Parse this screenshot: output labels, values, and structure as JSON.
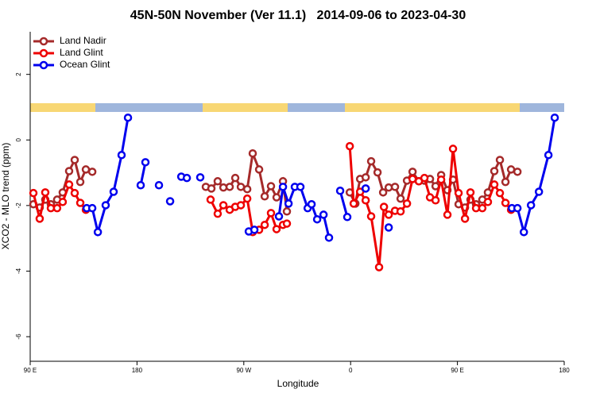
{
  "chart_data": {
    "type": "line",
    "title": "45N-50N November (Ver 11.1)   2014-09-06 to 2023-04-30",
    "xlabel": "Longitude",
    "ylabel": "XCO2 - MLO trend (ppm)",
    "xlim": [
      90,
      540
    ],
    "ylim": [
      -6.75,
      3.3
    ],
    "xticks": [
      {
        "value": 90,
        "label": "90 E"
      },
      180,
      {
        "value": 270,
        "label": "90 W"
      },
      {
        "value": 360,
        "label": "0"
      },
      {
        "value": 450,
        "label": "90 E"
      },
      180
    ],
    "yticks": [
      2,
      0,
      -2,
      -4,
      -6
    ],
    "legend": "top-left",
    "series": [
      {
        "name": "Land Nadir",
        "color": "#a52a2a",
        "x": [
          92.7,
          98,
          102.7,
          107.4,
          112.7,
          117.4,
          122.8,
          127.5,
          132.2,
          136.9,
          142.3,
          null,
          238,
          242.7,
          248,
          252.8,
          258.1,
          262.8,
          267.5,
          272.9,
          277.5,
          282.9,
          287.6,
          292.9,
          297.6,
          303,
          306.3,
          null,
          359.3,
          364,
          368,
          372.7,
          377.3,
          382.7,
          387.4,
          392.1,
          397.4,
          402.1,
          407.5,
          412.2,
          417.5,
          422.2,
          426.9,
          431.6,
          436.3,
          441.6,
          446.3,
          451,
          456.4,
          461,
          465.7,
          471,
          475.7,
          481.1,
          485.8,
          490.5,
          495.2,
          500.6
        ],
        "values": [
          -1.96,
          -2.06,
          -1.82,
          -1.96,
          -1.82,
          -1.6,
          -0.95,
          -0.61,
          -1.28,
          -0.9,
          -0.97,
          null,
          -1.43,
          -1.48,
          -1.26,
          -1.45,
          -1.43,
          -1.16,
          -1.43,
          -1.5,
          -0.41,
          -0.9,
          -1.72,
          -1.41,
          -1.75,
          -1.26,
          -2.18,
          null,
          -1.6,
          -1.94,
          -1.19,
          -1.14,
          -0.65,
          -0.99,
          -1.6,
          -1.45,
          -1.43,
          -1.79,
          -1.24,
          -0.97,
          -1.26,
          -1.24,
          -1.19,
          -1.41,
          -1.07,
          -1.53,
          -1.21,
          -1.96,
          -2.06,
          -1.82,
          -1.96,
          -1.82,
          -1.6,
          -0.95,
          -0.61,
          -1.28,
          -0.9,
          -0.97
        ]
      },
      {
        "name": "Land Glint",
        "color": "#ee0000",
        "x": [
          92.7,
          98,
          102.7,
          107.4,
          112.7,
          117.4,
          122.8,
          127.5,
          132.2,
          136.9,
          null,
          242,
          248,
          252.8,
          258.1,
          262.8,
          267.5,
          272.9,
          277.5,
          282.9,
          287.6,
          292.9,
          297.6,
          303,
          306.3,
          null,
          359.3,
          362.6,
          368,
          372.7,
          377.3,
          384,
          388.1,
          392.1,
          397.4,
          402.1,
          407.5,
          412.2,
          417.5,
          422.2,
          426.9,
          431.6,
          436.3,
          441.6,
          446.3,
          451,
          456.4,
          461,
          465.7,
          471,
          475.7,
          481.1,
          485.8,
          490.5,
          495.2
        ],
        "values": [
          -1.62,
          -2.4,
          -1.6,
          -2.08,
          -2.08,
          -1.89,
          -1.36,
          -1.62,
          -1.92,
          -2.13,
          null,
          -1.82,
          -2.25,
          -1.99,
          -2.13,
          -2.04,
          -1.99,
          -1.79,
          -2.81,
          -2.74,
          -2.59,
          -2.23,
          -2.72,
          -2.59,
          -2.55,
          null,
          -0.19,
          -1.94,
          -1.58,
          -1.84,
          -2.33,
          -3.88,
          -2.04,
          -2.28,
          -2.16,
          -2.18,
          -1.94,
          -1.19,
          -1.26,
          -1.16,
          -1.75,
          -1.84,
          -1.21,
          -2.28,
          -0.27,
          -1.62,
          -2.4,
          -1.6,
          -2.08,
          -2.08,
          -1.89,
          -1.36,
          -1.62,
          -1.92,
          -2.13
        ]
      },
      {
        "name": "Ocean Glint",
        "color": "#0000ee",
        "x": [
          137.6,
          142.3,
          147,
          153.6,
          160.3,
          167,
          172.4,
          null,
          183.1,
          187.1,
          null,
          198.5,
          null,
          207.9,
          null,
          217.3,
          222,
          null,
          233.3,
          null,
          274.2,
          278.9,
          null,
          299.6,
          303,
          307.7,
          313,
          317.7,
          323.8,
          327.1,
          331.8,
          337.2,
          341.8,
          null,
          351.2,
          357.2,
          null,
          372.7,
          null,
          392.1,
          null,
          495.9,
          500.6,
          506,
          512,
          518.7,
          526.7,
          532
        ],
        "values": [
          -2.08,
          -2.08,
          -2.81,
          -1.99,
          -1.58,
          -0.46,
          0.68,
          null,
          -1.38,
          -0.68,
          null,
          -1.38,
          null,
          -1.87,
          null,
          -1.12,
          -1.16,
          null,
          -1.14,
          null,
          -2.79,
          -2.74,
          null,
          -2.33,
          -1.43,
          -1.94,
          -1.43,
          -1.43,
          -2.08,
          -1.96,
          -2.42,
          -2.28,
          -2.98,
          null,
          -1.55,
          -2.35,
          null,
          -1.48,
          null,
          -2.67,
          null,
          -2.08,
          -2.08,
          -2.81,
          -1.99,
          -1.58,
          -0.46,
          0.68
        ]
      }
    ]
  }
}
